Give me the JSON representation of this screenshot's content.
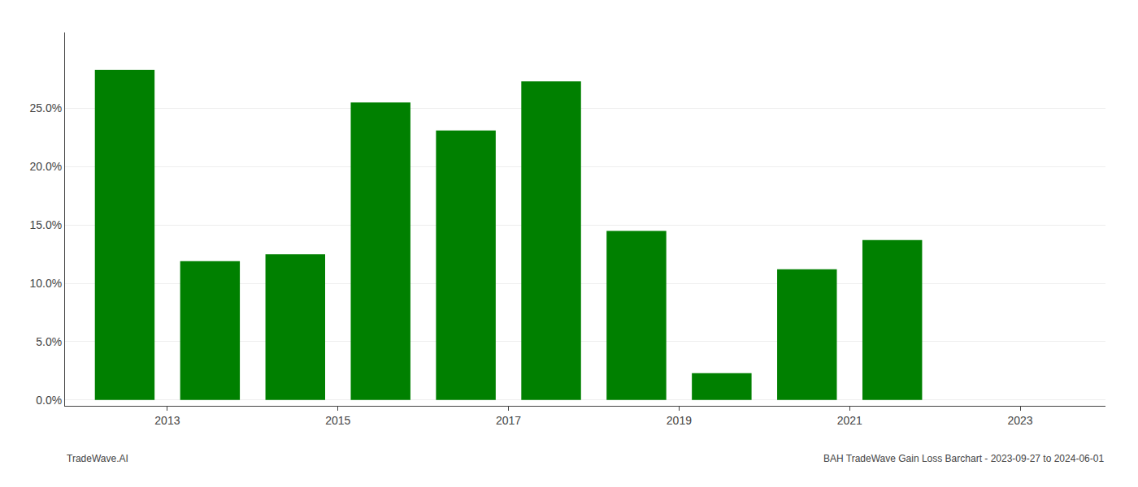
{
  "chart_data": {
    "type": "bar",
    "x": [
      2012,
      2013,
      2014,
      2015,
      2016,
      2017,
      2018,
      2019,
      2020,
      2021
    ],
    "values": [
      0.283,
      0.119,
      0.125,
      0.255,
      0.231,
      0.273,
      0.145,
      0.023,
      0.112,
      0.137
    ],
    "color": "#008000",
    "xlim": [
      2011.3,
      2023.5
    ],
    "xticks": [
      {
        "value": 2012.5,
        "label": "2013"
      },
      {
        "value": 2014.5,
        "label": "2015"
      },
      {
        "value": 2016.5,
        "label": "2017"
      },
      {
        "value": 2018.5,
        "label": "2019"
      },
      {
        "value": 2020.5,
        "label": "2021"
      },
      {
        "value": 2022.5,
        "label": "2023"
      }
    ],
    "ylim": [
      -0.005,
      0.315
    ],
    "yticks": [
      {
        "value": 0.0,
        "label": "0.0%"
      },
      {
        "value": 0.05,
        "label": "5.0%"
      },
      {
        "value": 0.1,
        "label": "10.0%"
      },
      {
        "value": 0.15,
        "label": "15.0%"
      },
      {
        "value": 0.2,
        "label": "20.0%"
      },
      {
        "value": 0.25,
        "label": "25.0%"
      }
    ],
    "grid": "y",
    "annotations": [
      "TradeWave.AI",
      "BAH TradeWave Gain Loss Barchart - 2023-09-27 to 2024-06-01"
    ]
  }
}
